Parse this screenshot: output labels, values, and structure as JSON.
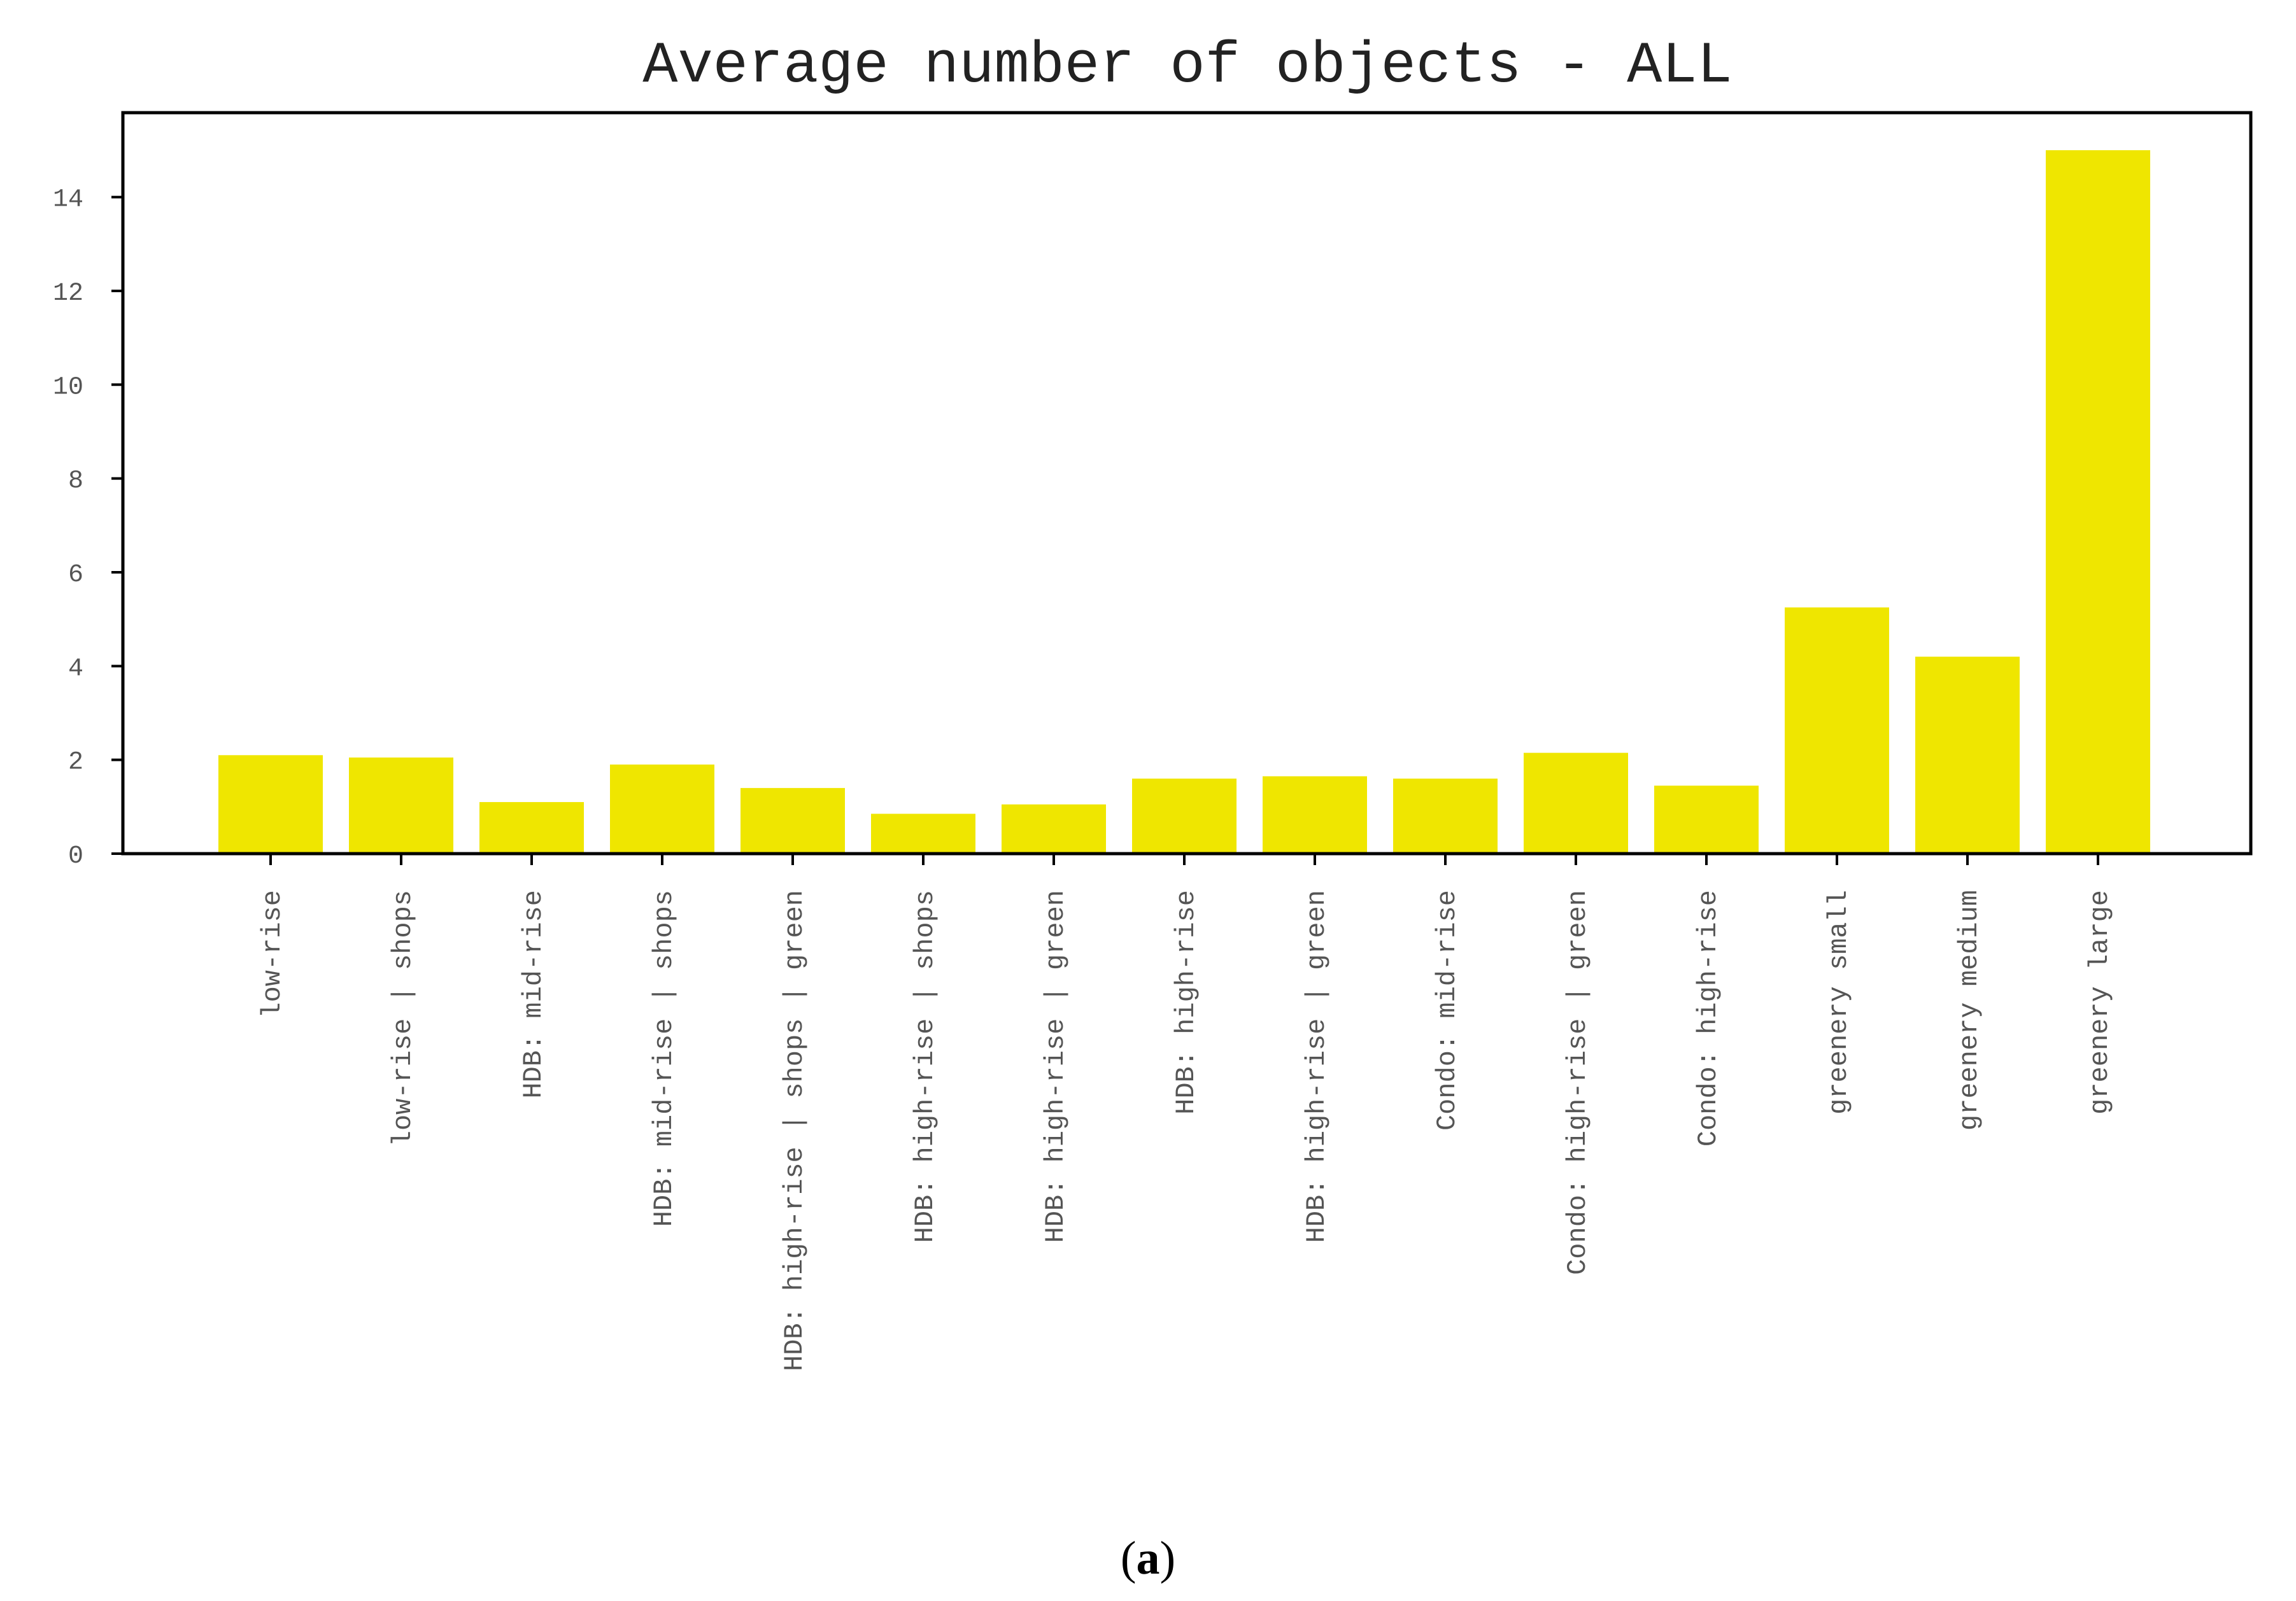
{
  "chart_data": {
    "type": "bar",
    "title": "Average number of objects - ALL",
    "xlabel": "",
    "ylabel": "",
    "categories": [
      "low-rise",
      "low-rise | shops",
      "HDB: mid-rise",
      "HDB: mid-rise | shops",
      "HDB: high-rise | shops | green",
      "HDB: high-rise | shops",
      "HDB: high-rise | green",
      "HDB: high-rise",
      "HDB: high-rise | green",
      "Condo: mid-rise",
      "Condo: high-rise | green",
      "Condo: high-rise",
      "greenery small",
      "greenery medium",
      "greenery large"
    ],
    "values": [
      2.1,
      2.05,
      1.1,
      1.9,
      1.4,
      0.85,
      1.05,
      1.6,
      1.65,
      1.6,
      2.15,
      1.45,
      5.25,
      4.2,
      15.0
    ],
    "ylim": [
      0,
      15.8
    ],
    "yticks": [
      "0",
      "2",
      "4",
      "6",
      "8",
      "10",
      "12",
      "14"
    ],
    "grid": false,
    "legend": "none",
    "bar_color": "#efe600",
    "axis_color": "#000000"
  },
  "caption": {
    "open": "(",
    "letter": "a",
    "close": ")"
  }
}
